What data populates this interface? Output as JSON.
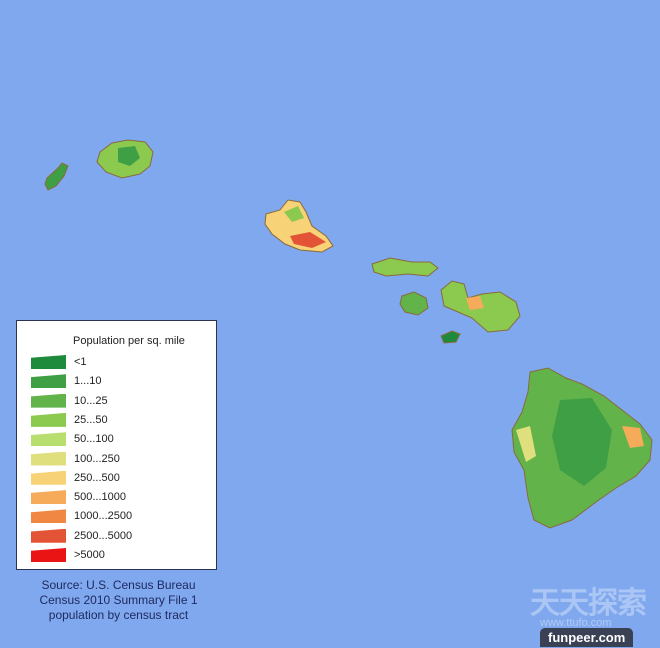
{
  "legend": {
    "title": "Population per sq. mile",
    "items": [
      {
        "label": "<1",
        "color": "#1e8a3c"
      },
      {
        "label": "1...10",
        "color": "#3f9f45"
      },
      {
        "label": "10...25",
        "color": "#62b44a"
      },
      {
        "label": "25...50",
        "color": "#8cc94f"
      },
      {
        "label": "50...100",
        "color": "#b9de70"
      },
      {
        "label": "100...250",
        "color": "#dfe07d"
      },
      {
        "label": "250...500",
        "color": "#f7d277"
      },
      {
        "label": "500...1000",
        "color": "#f6ab5b"
      },
      {
        "label": "1000...2500",
        "color": "#f08743"
      },
      {
        "label": "2500...5000",
        "color": "#e35437"
      },
      {
        "label": ">5000",
        "color": "#ea1414"
      }
    ]
  },
  "source": {
    "line1": "Source: U.S. Census Bureau",
    "line2": "Census 2010 Summary File 1",
    "line3": "population by census tract"
  },
  "watermarks": {
    "chinese": "天天探索",
    "url": "www.ttufo.com",
    "site": "funpeer.com"
  },
  "colors": {
    "ocean": "#7fa8ee",
    "coast": "#8a6a3a"
  }
}
